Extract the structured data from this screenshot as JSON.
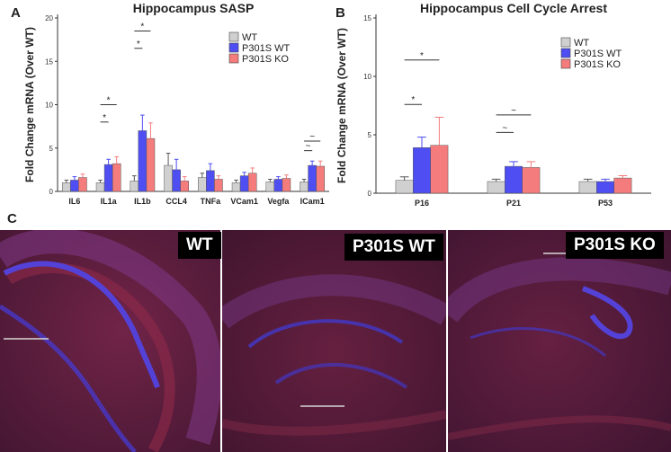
{
  "figure": {
    "panel_labels": [
      "A",
      "B",
      "C"
    ]
  },
  "colors": {
    "wt": "#d0d0d0",
    "p301s_wt": "#4e4ef2",
    "p301s_ko": "#f47c7c",
    "tissue_base": "#5a1e3a",
    "nuclear_stain": "#4b44e0",
    "signal_red": "#c0304a"
  },
  "chart_data": [
    {
      "id": "A",
      "type": "bar",
      "title": "Hippocampus SASP",
      "xlabel": "",
      "ylabel": "Fold Change mRNA (Over WT)",
      "ylim": [
        0,
        20
      ],
      "yticks": [
        0,
        5,
        10,
        15,
        20
      ],
      "categories": [
        "IL6",
        "IL1a",
        "IL1b",
        "CCL4",
        "TNFa",
        "VCam1",
        "Vegfa",
        "ICam1"
      ],
      "series": [
        {
          "name": "WT",
          "color_key": "wt",
          "values": [
            1.0,
            1.0,
            1.2,
            3.0,
            1.6,
            1.0,
            1.1,
            1.1
          ],
          "errors": [
            0.3,
            0.3,
            0.6,
            1.4,
            0.5,
            0.3,
            0.3,
            0.3
          ]
        },
        {
          "name": "P301S WT",
          "color_key": "p301s_wt",
          "values": [
            1.3,
            3.1,
            7.0,
            2.5,
            2.4,
            1.8,
            1.4,
            3.0
          ],
          "errors": [
            0.4,
            0.6,
            1.8,
            1.2,
            0.8,
            0.4,
            0.3,
            0.5
          ]
        },
        {
          "name": "P301S KO",
          "color_key": "p301s_ko",
          "values": [
            1.6,
            3.2,
            6.1,
            1.2,
            1.4,
            2.1,
            1.5,
            2.9
          ],
          "errors": [
            0.4,
            0.8,
            1.8,
            0.5,
            0.4,
            0.6,
            0.4,
            0.6
          ]
        }
      ],
      "significance": [
        {
          "category": "IL1a",
          "from": 0,
          "to": 1,
          "label": "*",
          "y": 8.0
        },
        {
          "category": "IL1a",
          "from": 0,
          "to": 2,
          "label": "*",
          "y": 10.0
        },
        {
          "category": "IL1b",
          "from": 0,
          "to": 1,
          "label": "*",
          "y": 16.5
        },
        {
          "category": "IL1b",
          "from": 0,
          "to": 2,
          "label": "*",
          "y": 18.5
        },
        {
          "category": "ICam1",
          "from": 0,
          "to": 1,
          "label": "~",
          "y": 4.7
        },
        {
          "category": "ICam1",
          "from": 0,
          "to": 2,
          "label": "~",
          "y": 5.8
        }
      ],
      "legend_position": "top-right"
    },
    {
      "id": "B",
      "type": "bar",
      "title": "Hippocampus Cell Cycle Arrest",
      "xlabel": "",
      "ylabel": "Fold Change mRNA (Over WT)",
      "ylim": [
        0,
        15
      ],
      "yticks": [
        0,
        5,
        10,
        15
      ],
      "categories": [
        "P16",
        "P21",
        "P53"
      ],
      "series": [
        {
          "name": "WT",
          "color_key": "wt",
          "values": [
            1.1,
            1.0,
            1.0
          ],
          "errors": [
            0.3,
            0.2,
            0.2
          ]
        },
        {
          "name": "P301S WT",
          "color_key": "p301s_wt",
          "values": [
            3.9,
            2.3,
            1.0
          ],
          "errors": [
            0.9,
            0.4,
            0.2
          ]
        },
        {
          "name": "P301S KO",
          "color_key": "p301s_ko",
          "values": [
            4.1,
            2.2,
            1.3
          ],
          "errors": [
            2.4,
            0.5,
            0.2
          ]
        }
      ],
      "significance": [
        {
          "category": "P16",
          "from": 0,
          "to": 1,
          "label": "*",
          "y": 7.6
        },
        {
          "category": "P16",
          "from": 0,
          "to": 2,
          "label": "*",
          "y": 11.4
        },
        {
          "category": "P21",
          "from": 0,
          "to": 1,
          "label": "~",
          "y": 5.2
        },
        {
          "category": "P21",
          "from": 0,
          "to": 2,
          "label": "~",
          "y": 6.7
        }
      ],
      "legend_position": "top-right"
    }
  ],
  "micrographs": [
    {
      "label": "WT"
    },
    {
      "label": "P301S WT"
    },
    {
      "label": "P301S KO"
    }
  ]
}
